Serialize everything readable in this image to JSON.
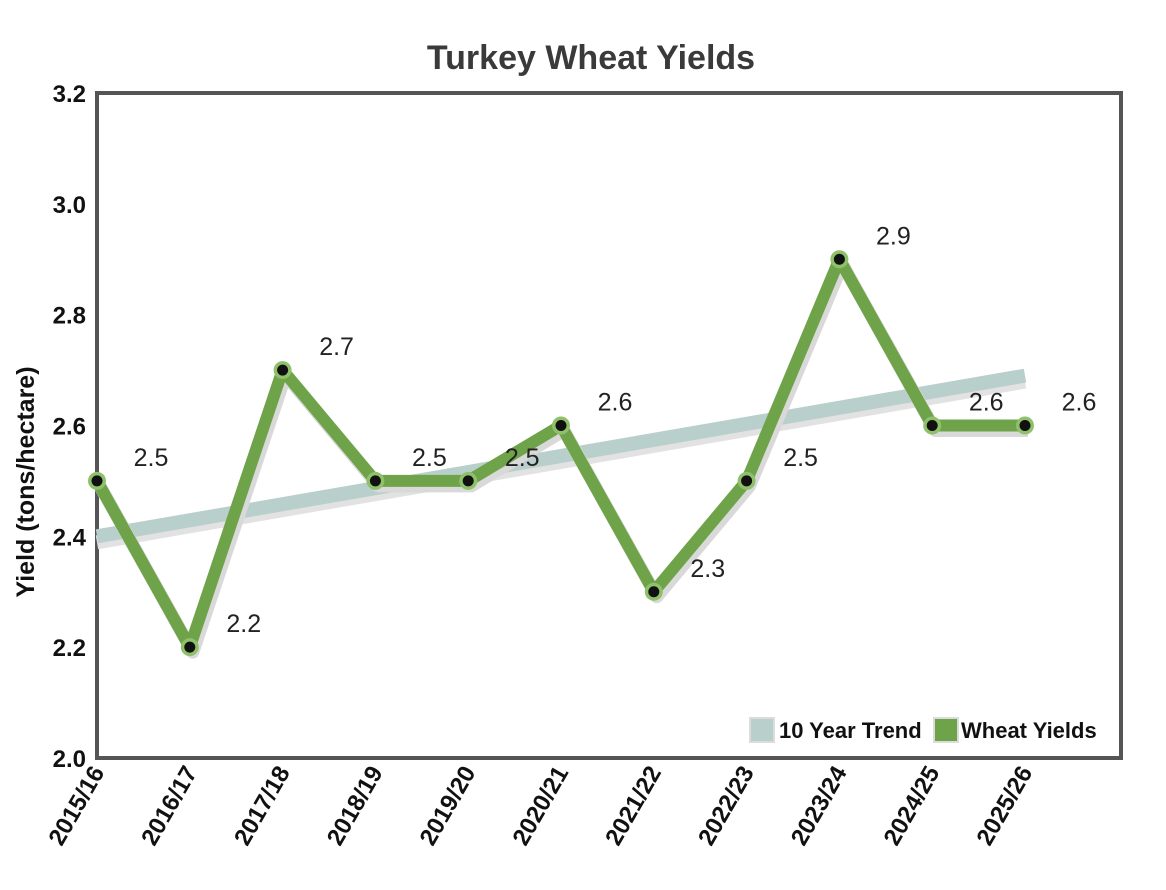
{
  "chart_data": {
    "type": "line",
    "title": "Turkey Wheat Yields",
    "xlabel": "",
    "ylabel": "Yield (tons/hectare)",
    "ylim": [
      2.0,
      3.2
    ],
    "yticks": [
      "2.0",
      "2.2",
      "2.4",
      "2.6",
      "2.8",
      "3.0",
      "3.2"
    ],
    "categories": [
      "2015/16",
      "2016/17",
      "2017/18",
      "2018/19",
      "2019/20",
      "2020/21",
      "2021/22",
      "2022/23",
      "2023/24",
      "2024/25",
      "2025/26"
    ],
    "series": [
      {
        "name": "Wheat Yields",
        "color": "#6fa34a",
        "values": [
          2.5,
          2.2,
          2.7,
          2.5,
          2.5,
          2.6,
          2.3,
          2.5,
          2.9,
          2.6,
          2.6
        ],
        "labels": [
          "2.5",
          "2.2",
          "2.7",
          "2.5",
          "2.5",
          "2.6",
          "2.3",
          "2.5",
          "2.9",
          "2.6",
          "2.6"
        ]
      },
      {
        "name": "10 Year Trend",
        "color": "#b9cfcb",
        "start": 2.4,
        "end": 2.69
      }
    ],
    "legend": {
      "position": "bottom-right"
    },
    "grid": false
  }
}
